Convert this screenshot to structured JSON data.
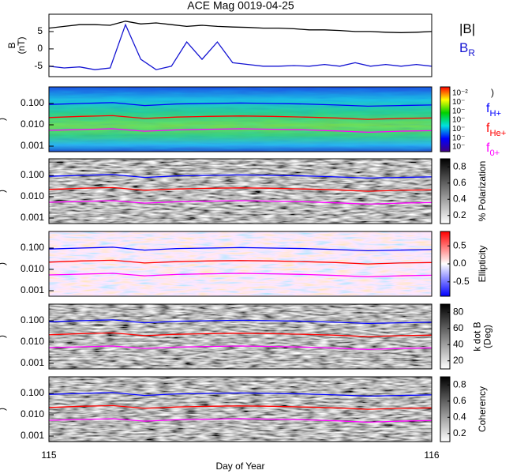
{
  "chart_data": [
    {
      "type": "line",
      "title": "ACE Mag 0019-04-25",
      "ylabel": [
        "B",
        "(nT)"
      ],
      "ylim": [
        -8,
        10
      ],
      "yticks": [
        -5,
        0,
        5
      ],
      "x": [
        115,
        115.04,
        115.08,
        115.12,
        115.16,
        115.2,
        115.24,
        115.28,
        115.32,
        115.36,
        115.4,
        115.44,
        115.48,
        115.52,
        115.56,
        115.6,
        115.64,
        115.68,
        115.72,
        115.76,
        115.8,
        115.84,
        115.88,
        115.92,
        115.96,
        116
      ],
      "series": [
        {
          "name": "|B|",
          "color": "#000000",
          "values": [
            6,
            6.5,
            7,
            7,
            6.8,
            8,
            7.2,
            7.5,
            7,
            6.5,
            6.8,
            6.5,
            6.3,
            6.2,
            6,
            6,
            5.8,
            5.5,
            5.5,
            5.3,
            5,
            5,
            4.8,
            4.7,
            4.8,
            5
          ]
        },
        {
          "name": "B",
          "subscript": "R",
          "color": "#1414d2",
          "values": [
            -5,
            -5.5,
            -5.2,
            -6,
            -5.5,
            7,
            -3,
            -6,
            -5,
            2,
            -3,
            2,
            -4,
            -4.5,
            -5,
            -5,
            -4.8,
            -5,
            -4.5,
            -5,
            -4,
            -5,
            -4.5,
            -5,
            -4.5,
            -5
          ]
        }
      ]
    },
    {
      "type": "spectrogram",
      "style": "rainbow",
      "ylabel": ")",
      "log_y": true,
      "ylim": [
        0.00055,
        0.6
      ],
      "yticks": [
        {
          "value": 0.1,
          "label": "0.100"
        },
        {
          "value": 0.01,
          "label": "0.010"
        },
        0.001
      ],
      "colorbar_label": ")",
      "colorbar_tick_labels": [
        "10⁻²",
        "10⁻",
        "10⁻",
        "10⁻",
        "10⁻",
        "10⁻",
        "10⁻"
      ],
      "x": [
        115,
        115.0833,
        115.1667,
        115.25,
        115.3333,
        115.4167,
        115.5,
        115.5833,
        115.6667,
        115.75,
        115.8333,
        115.9167,
        116
      ],
      "series": [
        {
          "name": "f",
          "subscript": "H+",
          "color": "#0000ff",
          "values": [
            0.09,
            0.1,
            0.11,
            0.08,
            0.095,
            0.1,
            0.105,
            0.1,
            0.095,
            0.085,
            0.075,
            0.08,
            0.085
          ]
        },
        {
          "name": "f",
          "subscript": "He+",
          "color": "#ff0000",
          "values": [
            0.022,
            0.025,
            0.027,
            0.02,
            0.023,
            0.025,
            0.026,
            0.025,
            0.023,
            0.021,
            0.018,
            0.02,
            0.021
          ]
        },
        {
          "name": "f",
          "subscript": "0+",
          "color": "#ff00ff",
          "values": [
            0.0055,
            0.006,
            0.0065,
            0.005,
            0.0058,
            0.0062,
            0.0065,
            0.0062,
            0.0058,
            0.0052,
            0.0045,
            0.005,
            0.0053
          ]
        }
      ]
    },
    {
      "type": "spectrogram",
      "style": "gray",
      "ylabel": ")",
      "log_y": true,
      "ylim": [
        0.00055,
        0.6
      ],
      "yticks": [
        {
          "value": 0.1,
          "label": "0.100"
        },
        {
          "value": 0.01,
          "label": "0.010"
        },
        0.001
      ],
      "colorbar_label": [
        "% Polarization"
      ],
      "clim": [
        0.1,
        0.9
      ],
      "cticks": [
        0.2,
        0.4,
        0.6,
        0.8
      ]
    },
    {
      "type": "spectrogram",
      "style": "redblue",
      "ylabel": ")",
      "log_y": true,
      "ylim": [
        0.00055,
        0.6
      ],
      "yticks": [
        {
          "value": 0.1,
          "label": "0.100"
        },
        {
          "value": 0.01,
          "label": "0.010"
        },
        0.001
      ],
      "colorbar_label": [
        "Ellipticity"
      ],
      "clim": [
        -0.9,
        0.9
      ],
      "cticks": [
        -0.5,
        {
          "value": 0,
          "label": "0.0"
        },
        0.5
      ]
    },
    {
      "type": "spectrogram",
      "style": "gray",
      "ylabel": ")",
      "log_y": true,
      "ylim": [
        0.00055,
        0.6
      ],
      "yticks": [
        {
          "value": 0.1,
          "label": "0.100"
        },
        {
          "value": 0.01,
          "label": "0.010"
        },
        0.001
      ],
      "colorbar_label": [
        "k dot B",
        "(Deg)"
      ],
      "clim": [
        10,
        90
      ],
      "cticks": [
        20,
        40,
        60,
        80
      ]
    },
    {
      "type": "spectrogram",
      "style": "gray",
      "ylabel": ")",
      "log_y": true,
      "ylim": [
        0.00055,
        0.6
      ],
      "yticks": [
        {
          "value": 0.1,
          "label": "0.100"
        },
        {
          "value": 0.01,
          "label": "0.010"
        },
        0.001
      ],
      "colorbar_label": [
        "Coherency"
      ],
      "clim": [
        0.1,
        0.9
      ],
      "cticks": [
        0.2,
        0.4,
        0.6,
        0.8
      ],
      "xlim": [
        115,
        116
      ],
      "xticks": [
        115,
        116
      ],
      "xlabel": "Day of Year"
    }
  ]
}
